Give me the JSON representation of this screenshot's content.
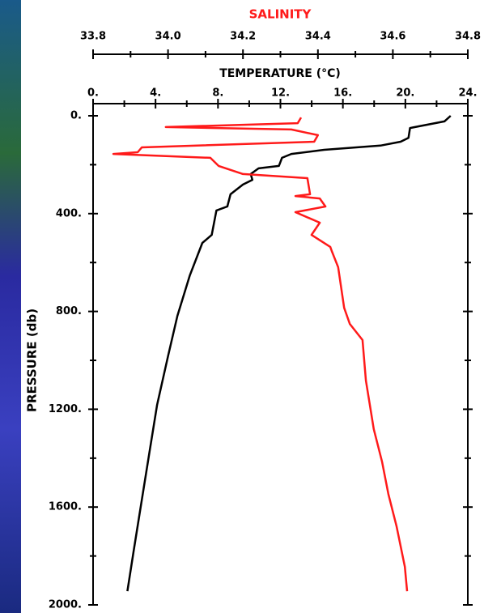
{
  "chart_data": {
    "type": "profile",
    "title": "SALINITY",
    "xlabel": "TEMPERATURE (°C)",
    "ylabel": "PRESSURE (db)",
    "xlim": [
      0,
      24
    ],
    "xticks": [
      {
        "value": 0,
        "label": "0."
      },
      {
        "value": 4,
        "label": "4."
      },
      {
        "value": 8,
        "label": "8."
      },
      {
        "value": 12,
        "label": "12."
      },
      {
        "value": 16,
        "label": "16."
      },
      {
        "value": 20,
        "label": "20."
      },
      {
        "value": 24,
        "label": "24."
      }
    ],
    "xminorticks": [
      2,
      6,
      10,
      14,
      18,
      22
    ],
    "x2lim": [
      33.8,
      34.8
    ],
    "x2ticks": [
      33.8,
      {
        "value": 34,
        "label": "34.0"
      },
      34.2,
      34.4,
      34.6,
      34.8
    ],
    "x2minorticks": [
      33.9,
      34.1,
      34.3,
      34.5,
      34.7
    ],
    "ylim": [
      0,
      2000
    ],
    "yticks": [
      {
        "value": 0,
        "label": "0."
      },
      {
        "value": 400,
        "label": "400."
      },
      {
        "value": 800,
        "label": "800."
      },
      {
        "value": 1200,
        "label": "1200."
      },
      {
        "value": 1600,
        "label": "1600."
      },
      {
        "value": 2000,
        "label": "2000."
      }
    ],
    "yminorticks": [
      200,
      600,
      1000,
      1400,
      1800
    ],
    "series": [
      {
        "color": "#000000",
        "axis": "x",
        "x": [
          22.9,
          22.5,
          20.3,
          20.2,
          19.7,
          18.4,
          14.8,
          12.7,
          12.1,
          11.9,
          10.6,
          10.1,
          10.2,
          9.6,
          8.8,
          8.6,
          7.9,
          7.6,
          7.0,
          6.2,
          5.4,
          4.8,
          4.1,
          3.6,
          3.1,
          2.6,
          2.2
        ],
        "y": [
          0,
          23,
          50,
          90,
          106,
          122,
          139,
          156,
          172,
          205,
          215,
          238,
          262,
          281,
          321,
          371,
          387,
          487,
          520,
          652,
          818,
          983,
          1182,
          1381,
          1579,
          1778,
          1944
        ]
      },
      {
        "color": "#ff1a1a",
        "axis": "x2",
        "x": [
          34.355,
          34.346,
          33.994,
          34.329,
          34.4,
          34.39,
          33.93,
          33.919,
          33.854,
          34.113,
          34.135,
          34.2,
          34.372,
          34.379,
          34.34,
          34.405,
          34.42,
          34.34,
          34.405,
          34.383,
          34.433,
          34.437,
          34.454,
          34.47,
          34.485,
          34.519,
          34.528,
          34.549,
          34.571,
          34.588,
          34.61,
          34.632,
          34.638
        ],
        "y": [
          7,
          30,
          46,
          56,
          79,
          106,
          129,
          149,
          156,
          172,
          205,
          238,
          255,
          321,
          328,
          338,
          371,
          394,
          437,
          487,
          536,
          553,
          619,
          785,
          851,
          917,
          1083,
          1281,
          1414,
          1546,
          1679,
          1844,
          1944
        ]
      }
    ]
  }
}
